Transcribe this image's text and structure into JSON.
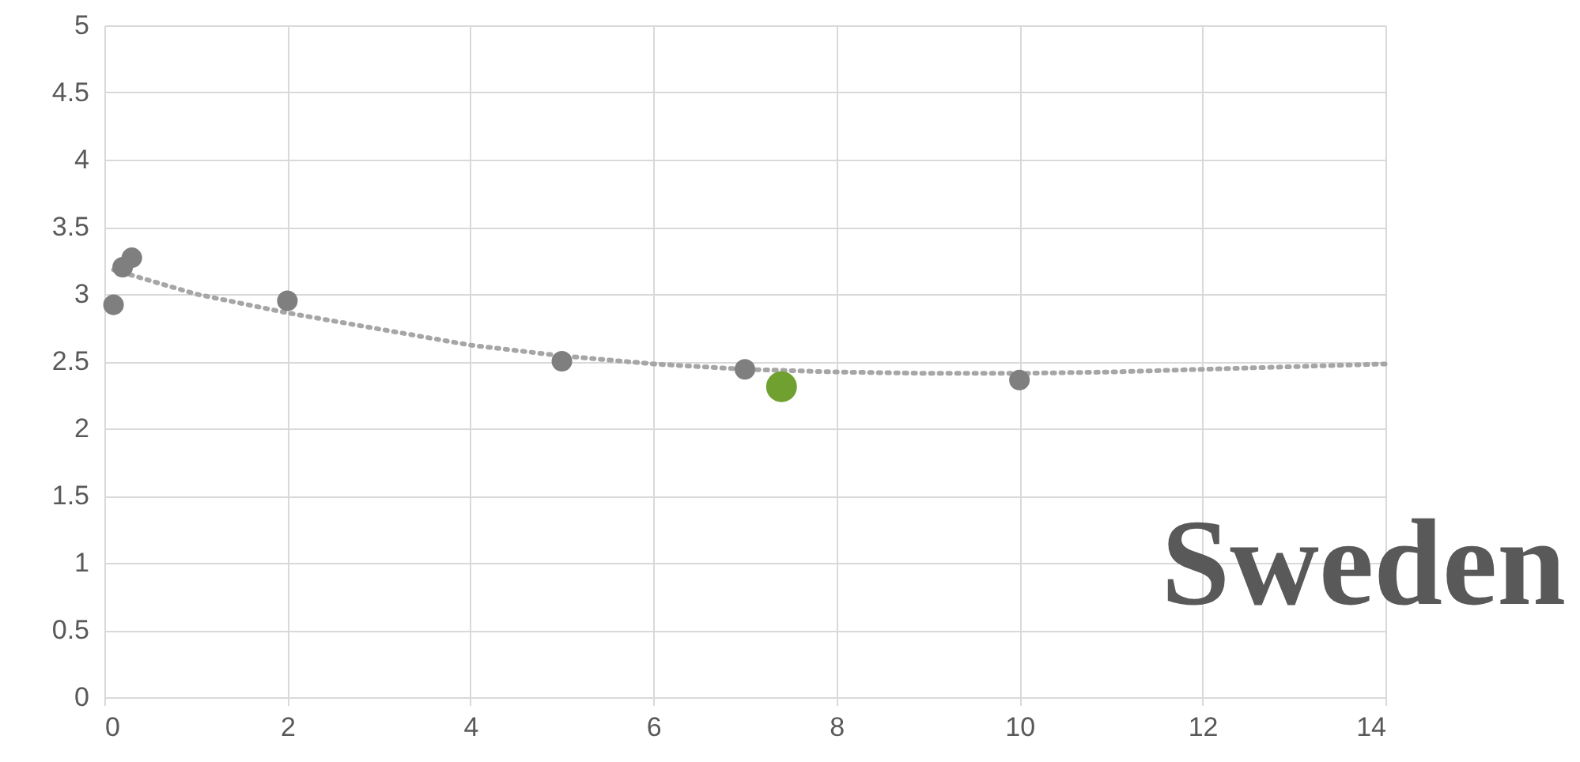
{
  "chart_data": {
    "type": "scatter",
    "marker": "circle",
    "grid": true,
    "xlim": [
      0,
      14
    ],
    "xticks": [
      0,
      2,
      4,
      6,
      8,
      10,
      12,
      14
    ],
    "ylim": [
      0,
      5
    ],
    "yticks": [
      0,
      0.5,
      1,
      1.5,
      2,
      2.5,
      3,
      3.5,
      4,
      4.5,
      5
    ],
    "series": [
      {
        "type": "line",
        "line_style": "dotted",
        "marker": "none",
        "color": "#a6a6a6",
        "x": [
          0.1,
          1,
          2,
          3,
          4,
          5,
          6,
          7,
          8,
          9,
          10,
          11,
          12,
          13,
          14
        ],
        "values": [
          3.18,
          3.0,
          2.86,
          2.74,
          2.62,
          2.54,
          2.48,
          2.44,
          2.42,
          2.41,
          2.41,
          2.42,
          2.44,
          2.46,
          2.48
        ]
      },
      {
        "color": "#7f7f7f",
        "x": [
          0.1,
          0.2,
          0.3,
          2,
          5,
          7,
          10
        ],
        "values": [
          2.92,
          3.2,
          3.27,
          2.95,
          2.5,
          2.44,
          2.36
        ]
      },
      {
        "color": "#70a030",
        "x": [
          7.4
        ],
        "values": [
          2.31
        ]
      }
    ],
    "annotations": [
      "Sweden"
    ]
  }
}
